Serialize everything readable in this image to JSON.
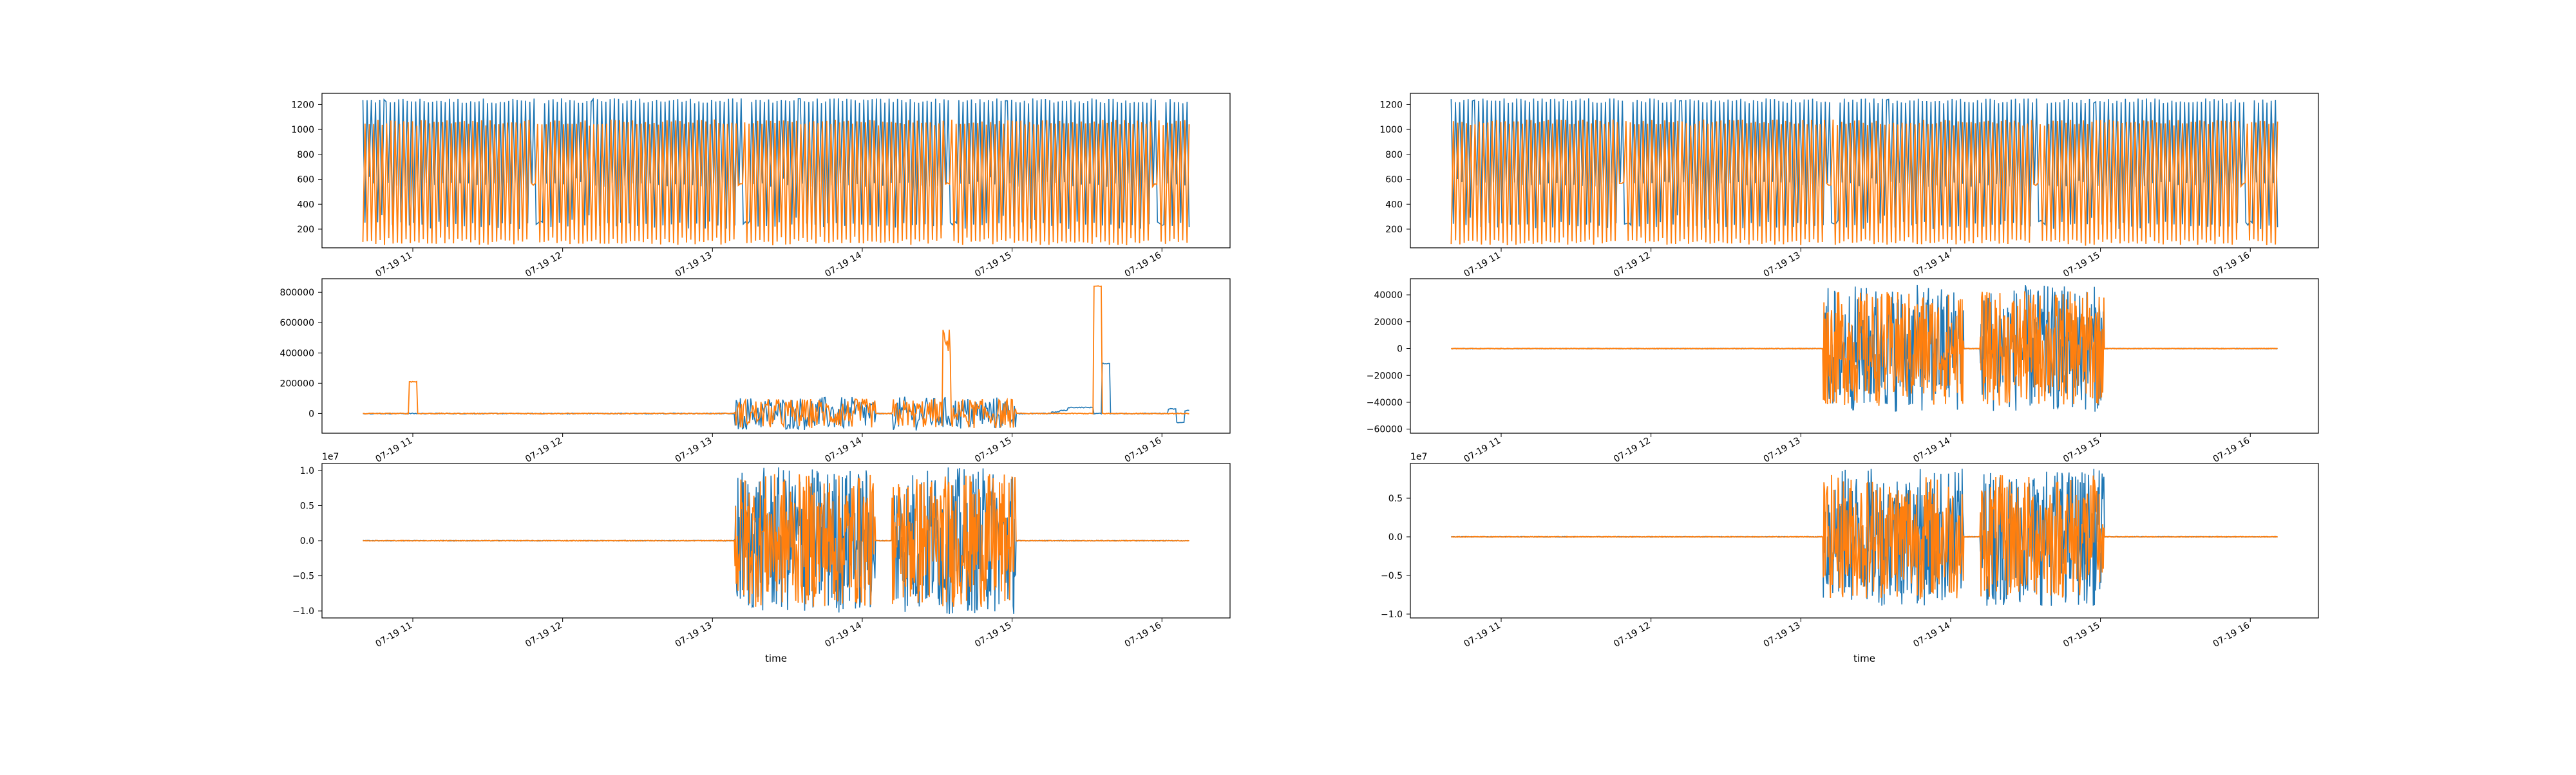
{
  "chart_data": [
    {
      "type": "line",
      "ylim": [
        50,
        1290
      ],
      "yticks": [
        200,
        400,
        600,
        800,
        1000,
        1200
      ],
      "ytick_labels": [
        "200",
        "400",
        "600",
        "800",
        "1000",
        "1200"
      ],
      "exponent_label": "",
      "xlabel": "",
      "xticks": [
        "07-19 11",
        "07-19 12",
        "07-19 13",
        "07-19 14",
        "07-19 15",
        "07-19 16"
      ],
      "style": "dense",
      "series": [
        {
          "color": "#1f77b4",
          "values": [
            1230,
            260,
            1230,
            600,
            1230,
            560,
            1230,
            240,
            1230,
            300,
            1230,
            1230,
            560,
            1230,
            230,
            1230,
            560,
            1230,
            240,
            1230,
            560,
            1230,
            220,
            1230,
            260,
            1230,
            560,
            1230,
            240,
            1230,
            560,
            1230,
            220,
            1230,
            560,
            1230,
            240,
            1230,
            560,
            1230,
            220,
            1230,
            560,
            1230,
            240,
            1230,
            560,
            1230,
            220,
            1230,
            560,
            1230,
            240,
            1230,
            560,
            1230,
            220,
            1230,
            560,
            1230,
            240,
            1230,
            560,
            1230,
            220,
            1230,
            250,
            1230,
            560,
            1230,
            240,
            1230,
            560,
            1230,
            220,
            1230,
            560,
            1230,
            240,
            1230,
            560,
            1230,
            250,
            250,
            250,
            250,
            1230,
            560,
            1230,
            220,
            1230,
            560,
            1230,
            240,
            1230,
            560,
            1230,
            220
          ]
        },
        {
          "color": "#ff7f0e",
          "values": [
            1060,
            90,
            1060,
            100,
            1050,
            120,
            1060,
            90,
            1060,
            80,
            1060,
            100,
            1050,
            90,
            1060,
            110,
            1060,
            90,
            1050,
            100,
            1060,
            90,
            1060,
            120,
            1060,
            90,
            1060,
            100,
            1050,
            90,
            1060,
            110,
            1060,
            90,
            1050,
            100,
            1060,
            90,
            1060,
            120,
            1060,
            90,
            1060,
            100,
            1050,
            90,
            1060,
            110,
            1060,
            90,
            1050,
            100,
            1060,
            90,
            1060,
            120,
            1060,
            90,
            1060,
            100,
            1050,
            90,
            1060,
            110,
            1060,
            90,
            1050,
            100,
            1060,
            90,
            1060,
            120,
            1060,
            90,
            1060,
            100,
            1050,
            90,
            1060,
            110,
            1060,
            560,
            560,
            560,
            1060,
            90,
            1050,
            100,
            1060,
            90,
            1060,
            120,
            1060,
            90,
            1060,
            100
          ]
        }
      ]
    },
    {
      "type": "line",
      "ylim": [
        -130000,
        890000
      ],
      "yticks": [
        0,
        200000,
        400000,
        600000,
        800000
      ],
      "ytick_labels": [
        "0",
        "200000",
        "400000",
        "600000",
        "800000"
      ],
      "exponent_label": "",
      "xlabel": "",
      "xticks": [
        "07-19 11",
        "07-19 12",
        "07-19 13",
        "07-19 14",
        "07-19 15",
        "07-19 16"
      ],
      "style": "spiky",
      "series": [
        {
          "color": "#1f77b4",
          "values": [
            0,
            0,
            0,
            0,
            0,
            0,
            0,
            0,
            0,
            0,
            0,
            0,
            0,
            0,
            0,
            0,
            0,
            0,
            0,
            0,
            0,
            0,
            0,
            0,
            0,
            0,
            0,
            0,
            0,
            0,
            0,
            0,
            0,
            0,
            0,
            0,
            0,
            0,
            0,
            0,
            0,
            0,
            0,
            0,
            0,
            0,
            0,
            0,
            0,
            0,
            0,
            0,
            0,
            0,
            0,
            0,
            0,
            0,
            0,
            0,
            0,
            0,
            0,
            0,
            0,
            0,
            0,
            0,
            0,
            0,
            0,
            0,
            0,
            0,
            0,
            0,
            0,
            0,
            0,
            0,
            0,
            0,
            0,
            10000,
            20000,
            40000,
            40000,
            40000,
            0,
            330000,
            0,
            0,
            0,
            0,
            0,
            0,
            0,
            30000,
            -60000,
            20000
          ]
        },
        {
          "color": "#ff7f0e",
          "values": [
            0,
            0,
            0,
            0,
            0,
            0,
            210000,
            0,
            0,
            0,
            0,
            0,
            0,
            0,
            0,
            0,
            0,
            0,
            0,
            0,
            0,
            0,
            0,
            0,
            0,
            0,
            0,
            0,
            0,
            0,
            0,
            0,
            0,
            0,
            0,
            0,
            0,
            0,
            0,
            0,
            0,
            0,
            0,
            0,
            0,
            0,
            0,
            0,
            0,
            0,
            0,
            0,
            0,
            0,
            0,
            0,
            0,
            0,
            0,
            0,
            0,
            0,
            0,
            0,
            0,
            0,
            0,
            0,
            0,
            0,
            460000,
            0,
            0,
            0,
            0,
            0,
            0,
            0,
            0,
            0,
            0,
            0,
            0,
            0,
            0,
            0,
            0,
            0,
            840000,
            0,
            0,
            0,
            0,
            0,
            0,
            0,
            0,
            0,
            0,
            0
          ]
        }
      ],
      "burst_segments": [
        [
          0.45,
          0.62
        ],
        [
          0.64,
          0.79
        ]
      ],
      "burst_amplitude": 110000
    },
    {
      "type": "line",
      "ylim": [
        -1.1,
        1.1
      ],
      "yticks": [
        -1.0,
        -0.5,
        0.0,
        0.5,
        1.0
      ],
      "ytick_labels": [
        "−1.0",
        "−0.5",
        "0.0",
        "0.5",
        "1.0"
      ],
      "exponent_label": "1e7",
      "xlabel": "time",
      "xticks": [
        "07-19 11",
        "07-19 12",
        "07-19 13",
        "07-19 14",
        "07-19 15",
        "07-19 16"
      ],
      "style": "burst",
      "series": [
        {
          "color": "#1f77b4"
        },
        {
          "color": "#ff7f0e"
        }
      ],
      "burst_segments": [
        [
          0.45,
          0.62
        ],
        [
          0.64,
          0.79
        ]
      ],
      "burst_amplitude": 1.0
    },
    {
      "type": "line",
      "ylim": [
        50,
        1290
      ],
      "yticks": [
        200,
        400,
        600,
        800,
        1000,
        1200
      ],
      "ytick_labels": [
        "200",
        "400",
        "600",
        "800",
        "1000",
        "1200"
      ],
      "exponent_label": "",
      "xlabel": "",
      "xticks": [
        "07-19 11",
        "07-19 12",
        "07-19 13",
        "07-19 14",
        "07-19 15",
        "07-19 16"
      ],
      "style": "dense",
      "series": [
        {
          "color": "#1f77b4",
          "values": [
            1230,
            260,
            1230,
            600,
            1230,
            560,
            1230,
            240,
            1230,
            300,
            1230,
            1230,
            560,
            1230,
            230,
            1230,
            560,
            1230,
            240,
            1230,
            560,
            1230,
            220,
            1230,
            260,
            1230,
            560,
            1230,
            240,
            1230,
            560,
            1230,
            220,
            1230,
            560,
            1230,
            240,
            1230,
            560,
            1230,
            220,
            1230,
            560,
            1230,
            240,
            1230,
            560,
            1230,
            220,
            1230,
            560,
            1230,
            240,
            1230,
            560,
            1230,
            220,
            1230,
            560,
            1230,
            240,
            1230,
            560,
            1230,
            220,
            1230,
            250,
            1230,
            560,
            1230,
            240,
            1230,
            560,
            1230,
            220,
            1230,
            560,
            1230,
            240,
            1230,
            560,
            1230,
            250,
            250,
            250,
            250,
            1230,
            560,
            1230,
            220,
            1230,
            560,
            1230,
            240,
            1230,
            560,
            1230,
            220
          ]
        },
        {
          "color": "#ff7f0e",
          "values": [
            1060,
            90,
            1060,
            100,
            1050,
            120,
            1060,
            90,
            1060,
            80,
            1060,
            100,
            1050,
            90,
            1060,
            110,
            1060,
            90,
            1050,
            100,
            1060,
            90,
            1060,
            120,
            1060,
            90,
            1060,
            100,
            1050,
            90,
            1060,
            110,
            1060,
            90,
            1050,
            100,
            1060,
            90,
            1060,
            120,
            1060,
            90,
            1060,
            100,
            1050,
            90,
            1060,
            110,
            1060,
            90,
            1050,
            100,
            1060,
            90,
            1060,
            120,
            1060,
            90,
            1060,
            100,
            1050,
            90,
            1060,
            110,
            1060,
            90,
            1050,
            100,
            1060,
            90,
            1060,
            120,
            1060,
            90,
            1060,
            100,
            1050,
            90,
            1060,
            110,
            1060,
            560,
            560,
            560,
            1060,
            90,
            1050,
            100,
            1060,
            90,
            1060,
            120,
            1060,
            90,
            1060,
            100
          ]
        }
      ]
    },
    {
      "type": "line",
      "ylim": [
        -63000,
        52000
      ],
      "yticks": [
        -60000,
        -40000,
        -20000,
        0,
        20000,
        40000
      ],
      "ytick_labels": [
        "−60000",
        "−40000",
        "−20000",
        "0",
        "20000",
        "40000"
      ],
      "exponent_label": "",
      "xlabel": "",
      "xticks": [
        "07-19 11",
        "07-19 12",
        "07-19 13",
        "07-19 14",
        "07-19 15",
        "07-19 16"
      ],
      "style": "burst",
      "series": [
        {
          "color": "#1f77b4"
        },
        {
          "color": "#ff7f0e"
        }
      ],
      "burst_segments": [
        [
          0.45,
          0.62
        ],
        [
          0.64,
          0.79
        ]
      ],
      "burst_amplitude": 45000
    },
    {
      "type": "line",
      "ylim": [
        -1.05,
        0.95
      ],
      "yticks": [
        -1.0,
        -0.5,
        0.0,
        0.5
      ],
      "ytick_labels": [
        "−1.0",
        "−0.5",
        "0.0",
        "0.5"
      ],
      "exponent_label": "1e7",
      "xlabel": "time",
      "xticks": [
        "07-19 11",
        "07-19 12",
        "07-19 13",
        "07-19 14",
        "07-19 15",
        "07-19 16"
      ],
      "style": "burst",
      "series": [
        {
          "color": "#1f77b4"
        },
        {
          "color": "#ff7f0e"
        }
      ],
      "burst_segments": [
        [
          0.45,
          0.62
        ],
        [
          0.64,
          0.79
        ]
      ],
      "burst_amplitude": 0.85
    }
  ]
}
